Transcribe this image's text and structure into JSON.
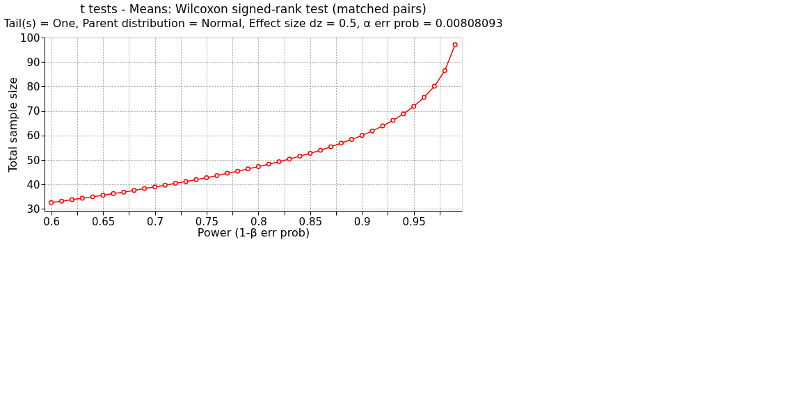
{
  "chart_data": {
    "type": "line",
    "title": "t tests - Means: Wilcoxon signed-rank test (matched pairs)",
    "subtitle": "Tail(s) = One, Parent distribution = Normal, Effect size dz = 0.5, α err prob = 0.00808093",
    "xlabel": "Power (1-β err prob)",
    "ylabel": "Total sample size",
    "x": [
      0.6,
      0.61,
      0.62,
      0.63,
      0.64,
      0.65,
      0.66,
      0.67,
      0.68,
      0.69,
      0.7,
      0.71,
      0.72,
      0.73,
      0.74,
      0.75,
      0.76,
      0.77,
      0.78,
      0.79,
      0.8,
      0.81,
      0.82,
      0.83,
      0.84,
      0.85,
      0.86,
      0.87,
      0.88,
      0.89,
      0.9,
      0.91,
      0.92,
      0.93,
      0.94,
      0.95,
      0.96,
      0.97,
      0.98,
      0.99
    ],
    "series": [
      {
        "color": "#ff0000",
        "values": [
          32.6,
          33.2,
          33.8,
          34.4,
          35.0,
          35.6,
          36.3,
          36.9,
          37.6,
          38.4,
          39.0,
          39.7,
          40.5,
          41.2,
          42.0,
          42.8,
          43.6,
          44.6,
          45.4,
          46.4,
          47.3,
          48.3,
          49.3,
          50.4,
          51.6,
          52.7,
          54.0,
          55.4,
          56.9,
          58.4,
          60.0,
          61.9,
          63.9,
          66.2,
          68.8,
          71.9,
          75.6,
          80.1,
          86.5,
          97.1
        ]
      }
    ],
    "xlim": [
      0.5935,
      0.9966
    ],
    "ylim": [
      29,
      100
    ],
    "xticks": [
      0.6,
      {
        "value": 0.625,
        "label": null
      },
      0.65,
      {
        "value": 0.675,
        "label": null
      },
      0.7,
      {
        "value": 0.725,
        "label": null
      },
      0.75,
      {
        "value": 0.775,
        "label": null
      },
      0.8,
      {
        "value": 0.825,
        "label": null
      },
      0.85,
      {
        "value": 0.875,
        "label": null
      },
      0.9,
      {
        "value": 0.925,
        "label": null
      },
      0.95,
      {
        "value": 0.975,
        "label": null
      }
    ],
    "yticks": [
      30,
      40,
      50,
      60,
      70,
      80,
      90,
      100
    ],
    "grid": true,
    "marker": "circle",
    "line_style": "solid"
  }
}
